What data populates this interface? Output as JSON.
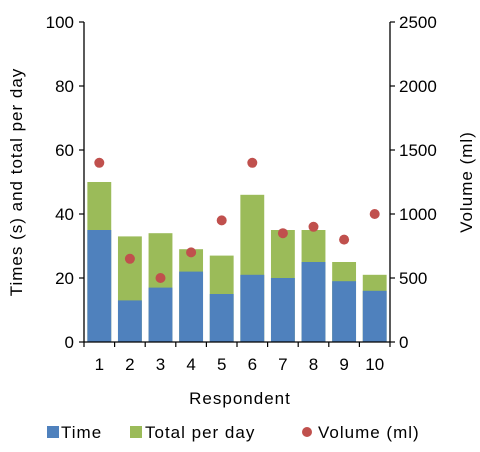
{
  "chart_data": {
    "type": "bar",
    "title": "",
    "xlabel": "Respondent",
    "ylabel_left": "Times (s) and total per day",
    "ylabel_right": "Volume  (ml)",
    "categories": [
      "1",
      "2",
      "3",
      "4",
      "5",
      "6",
      "7",
      "8",
      "9",
      "10"
    ],
    "stacked": true,
    "series": [
      {
        "name": "Time",
        "kind": "bar",
        "axis": "left",
        "color": "#4f81bd",
        "values": [
          35,
          13,
          17,
          22,
          15,
          21,
          20,
          25,
          19,
          16
        ]
      },
      {
        "name": "Total per day",
        "kind": "bar",
        "axis": "left",
        "color": "#9bbb59",
        "values": [
          50,
          33,
          34,
          29,
          27,
          46,
          35,
          35,
          25,
          21
        ]
      },
      {
        "name": "Volume  (ml)",
        "kind": "scatter",
        "axis": "right",
        "color": "#c0504d",
        "values": [
          1400,
          650,
          500,
          700,
          950,
          1400,
          850,
          900,
          800,
          1000
        ]
      }
    ],
    "ylim_left": [
      0,
      100
    ],
    "yticks_left": [
      "0",
      "20",
      "40",
      "60",
      "80",
      "100"
    ],
    "ylim_right": [
      0,
      2500
    ],
    "yticks_right": [
      "0",
      "500",
      "1000",
      "1500",
      "2000",
      "2500"
    ],
    "grid": false,
    "legend_position": "bottom"
  }
}
